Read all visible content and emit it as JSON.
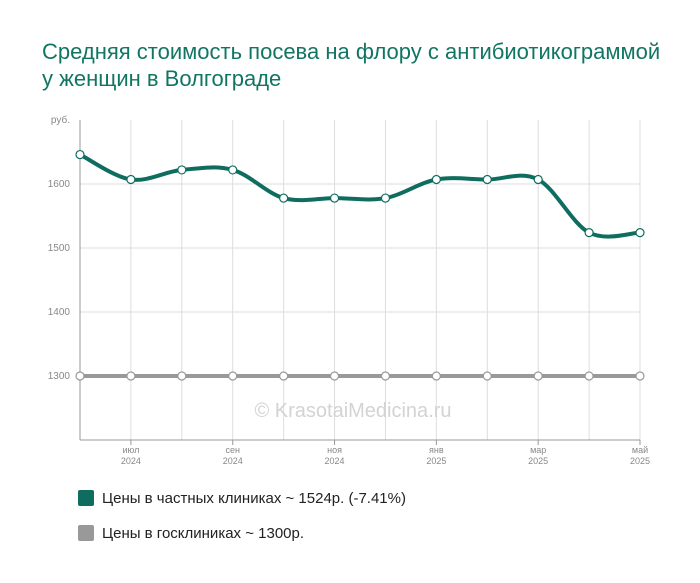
{
  "title": "Средняя стоимость посева на флору с антибиотикограммой у женщин в Волгограде",
  "watermark": "© KrasotaiMedicina.ru",
  "legend": [
    {
      "label": "Цены в частных клиниках ~ 1524р. (-7.41%)",
      "color": "#0f6d60"
    },
    {
      "label": "Цены в госклиниках ~ 1300р.",
      "color": "#999999"
    }
  ],
  "chart_data": {
    "type": "line",
    "ylabel": "руб.",
    "ylim": [
      1200,
      1700
    ],
    "yticks": [
      1300,
      1400,
      1500,
      1600
    ],
    "x": [
      "2024-06",
      "2024-07",
      "2024-08",
      "2024-09",
      "2024-10",
      "2024-11",
      "2024-12",
      "2025-01",
      "2025-02",
      "2025-03",
      "2025-04",
      "2025-05"
    ],
    "xtick_labels": [
      {
        "index": 1,
        "month": "июл",
        "year": "2024"
      },
      {
        "index": 3,
        "month": "сен",
        "year": "2024"
      },
      {
        "index": 5,
        "month": "ноя",
        "year": "2024"
      },
      {
        "index": 7,
        "month": "янв",
        "year": "2025"
      },
      {
        "index": 9,
        "month": "мар",
        "year": "2025"
      },
      {
        "index": 11,
        "month": "май",
        "year": "2025"
      }
    ],
    "grid": true,
    "series": [
      {
        "name": "Цены в частных клиниках",
        "color": "#0f6d60",
        "values": [
          1646,
          1607,
          1622,
          1622,
          1578,
          1578,
          1578,
          1607,
          1607,
          1607,
          1524,
          1524
        ]
      },
      {
        "name": "Цены в госклиниках",
        "color": "#999999",
        "values": [
          1300,
          1300,
          1300,
          1300,
          1300,
          1300,
          1300,
          1300,
          1300,
          1300,
          1300,
          1300
        ]
      }
    ]
  }
}
